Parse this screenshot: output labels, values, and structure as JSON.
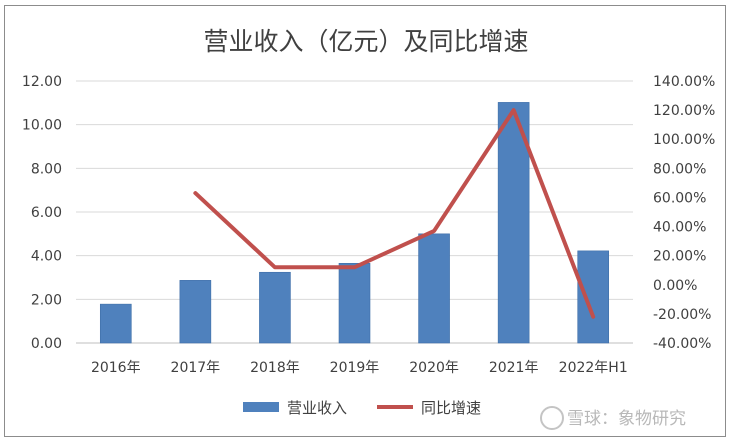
{
  "chart_data": {
    "type": "bar",
    "title": "营业收入（亿元）及同比增速",
    "categories": [
      "2016年",
      "2017年",
      "2018年",
      "2019年",
      "2020年",
      "2021年",
      "2022年H1"
    ],
    "series": [
      {
        "name": "营业收入",
        "type": "bar",
        "axis": "left",
        "color": "#4f81bd",
        "values": [
          1.78,
          2.87,
          3.24,
          3.65,
          5.0,
          11.02,
          4.22
        ]
      },
      {
        "name": "同比增速",
        "type": "line",
        "axis": "right",
        "color": "#c0504d",
        "values": [
          null,
          0.63,
          0.12,
          0.12,
          0.37,
          1.2,
          -0.22
        ]
      }
    ],
    "y_left": {
      "lim": [
        0,
        12
      ],
      "ticks": [
        "0.00",
        "2.00",
        "4.00",
        "6.00",
        "8.00",
        "10.00",
        "12.00"
      ]
    },
    "y_right": {
      "lim": [
        -0.4,
        1.4
      ],
      "ticks": [
        "-40.00%",
        "-20.00%",
        "0.00%",
        "20.00%",
        "40.00%",
        "60.00%",
        "80.00%",
        "100.00%",
        "120.00%",
        "140.00%"
      ]
    },
    "grid": true,
    "legend_position": "bottom"
  },
  "watermark": {
    "text": "雪球：象物研究"
  }
}
